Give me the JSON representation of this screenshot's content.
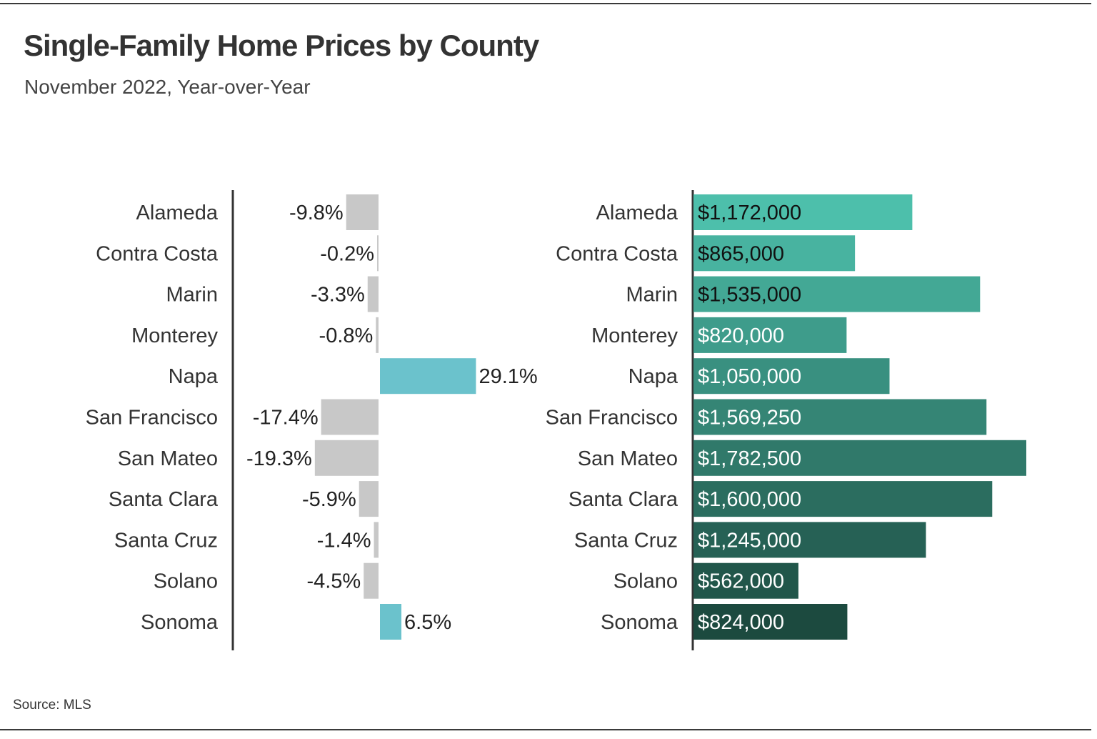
{
  "title": "Single-Family Home Prices by County",
  "subtitle": "November 2022, Year-over-Year",
  "source": "Source:  MLS",
  "colors": {
    "negative_bar": "#c8c8c8",
    "positive_bar": "#6bc2cc",
    "price_gradient_start": "#4dbfab",
    "price_gradient_end": "#1c4a3f",
    "axis": "#333333"
  },
  "chart_data": [
    {
      "type": "bar",
      "orientation": "horizontal",
      "categories": [
        "Alameda",
        "Contra Costa",
        "Marin",
        "Monterey",
        "Napa",
        "San Francisco",
        "San Mateo",
        "Santa Clara",
        "Santa Cruz",
        "Solano",
        "Sonoma"
      ],
      "values": [
        -9.8,
        -0.2,
        -3.3,
        -0.8,
        29.1,
        -17.4,
        -19.3,
        -5.9,
        -1.4,
        -4.5,
        6.5
      ],
      "data_labels": [
        "-9.8%",
        "-0.2%",
        "-3.3%",
        "-0.8%",
        "29.1%",
        "-17.4%",
        "-19.3%",
        "-5.9%",
        "-1.4%",
        "-4.5%",
        "6.5%"
      ],
      "unit": "%",
      "grid": false
    },
    {
      "type": "bar",
      "orientation": "horizontal",
      "categories": [
        "Alameda",
        "Contra Costa",
        "Marin",
        "Monterey",
        "Napa",
        "San Francisco",
        "San Mateo",
        "Santa Clara",
        "Santa Cruz",
        "Solano",
        "Sonoma"
      ],
      "values": [
        1172000,
        865000,
        1535000,
        820000,
        1050000,
        1569250,
        1782500,
        1600000,
        1245000,
        562000,
        824000
      ],
      "data_labels": [
        "$1,172,000",
        "$865,000",
        "$1,535,000",
        "$820,000",
        "$1,050,000",
        "$1,569,250",
        "$1,782,500",
        "$1,600,000",
        "$1,245,000",
        "$562,000",
        "$824,000"
      ],
      "unit": "$",
      "grid": false
    }
  ]
}
